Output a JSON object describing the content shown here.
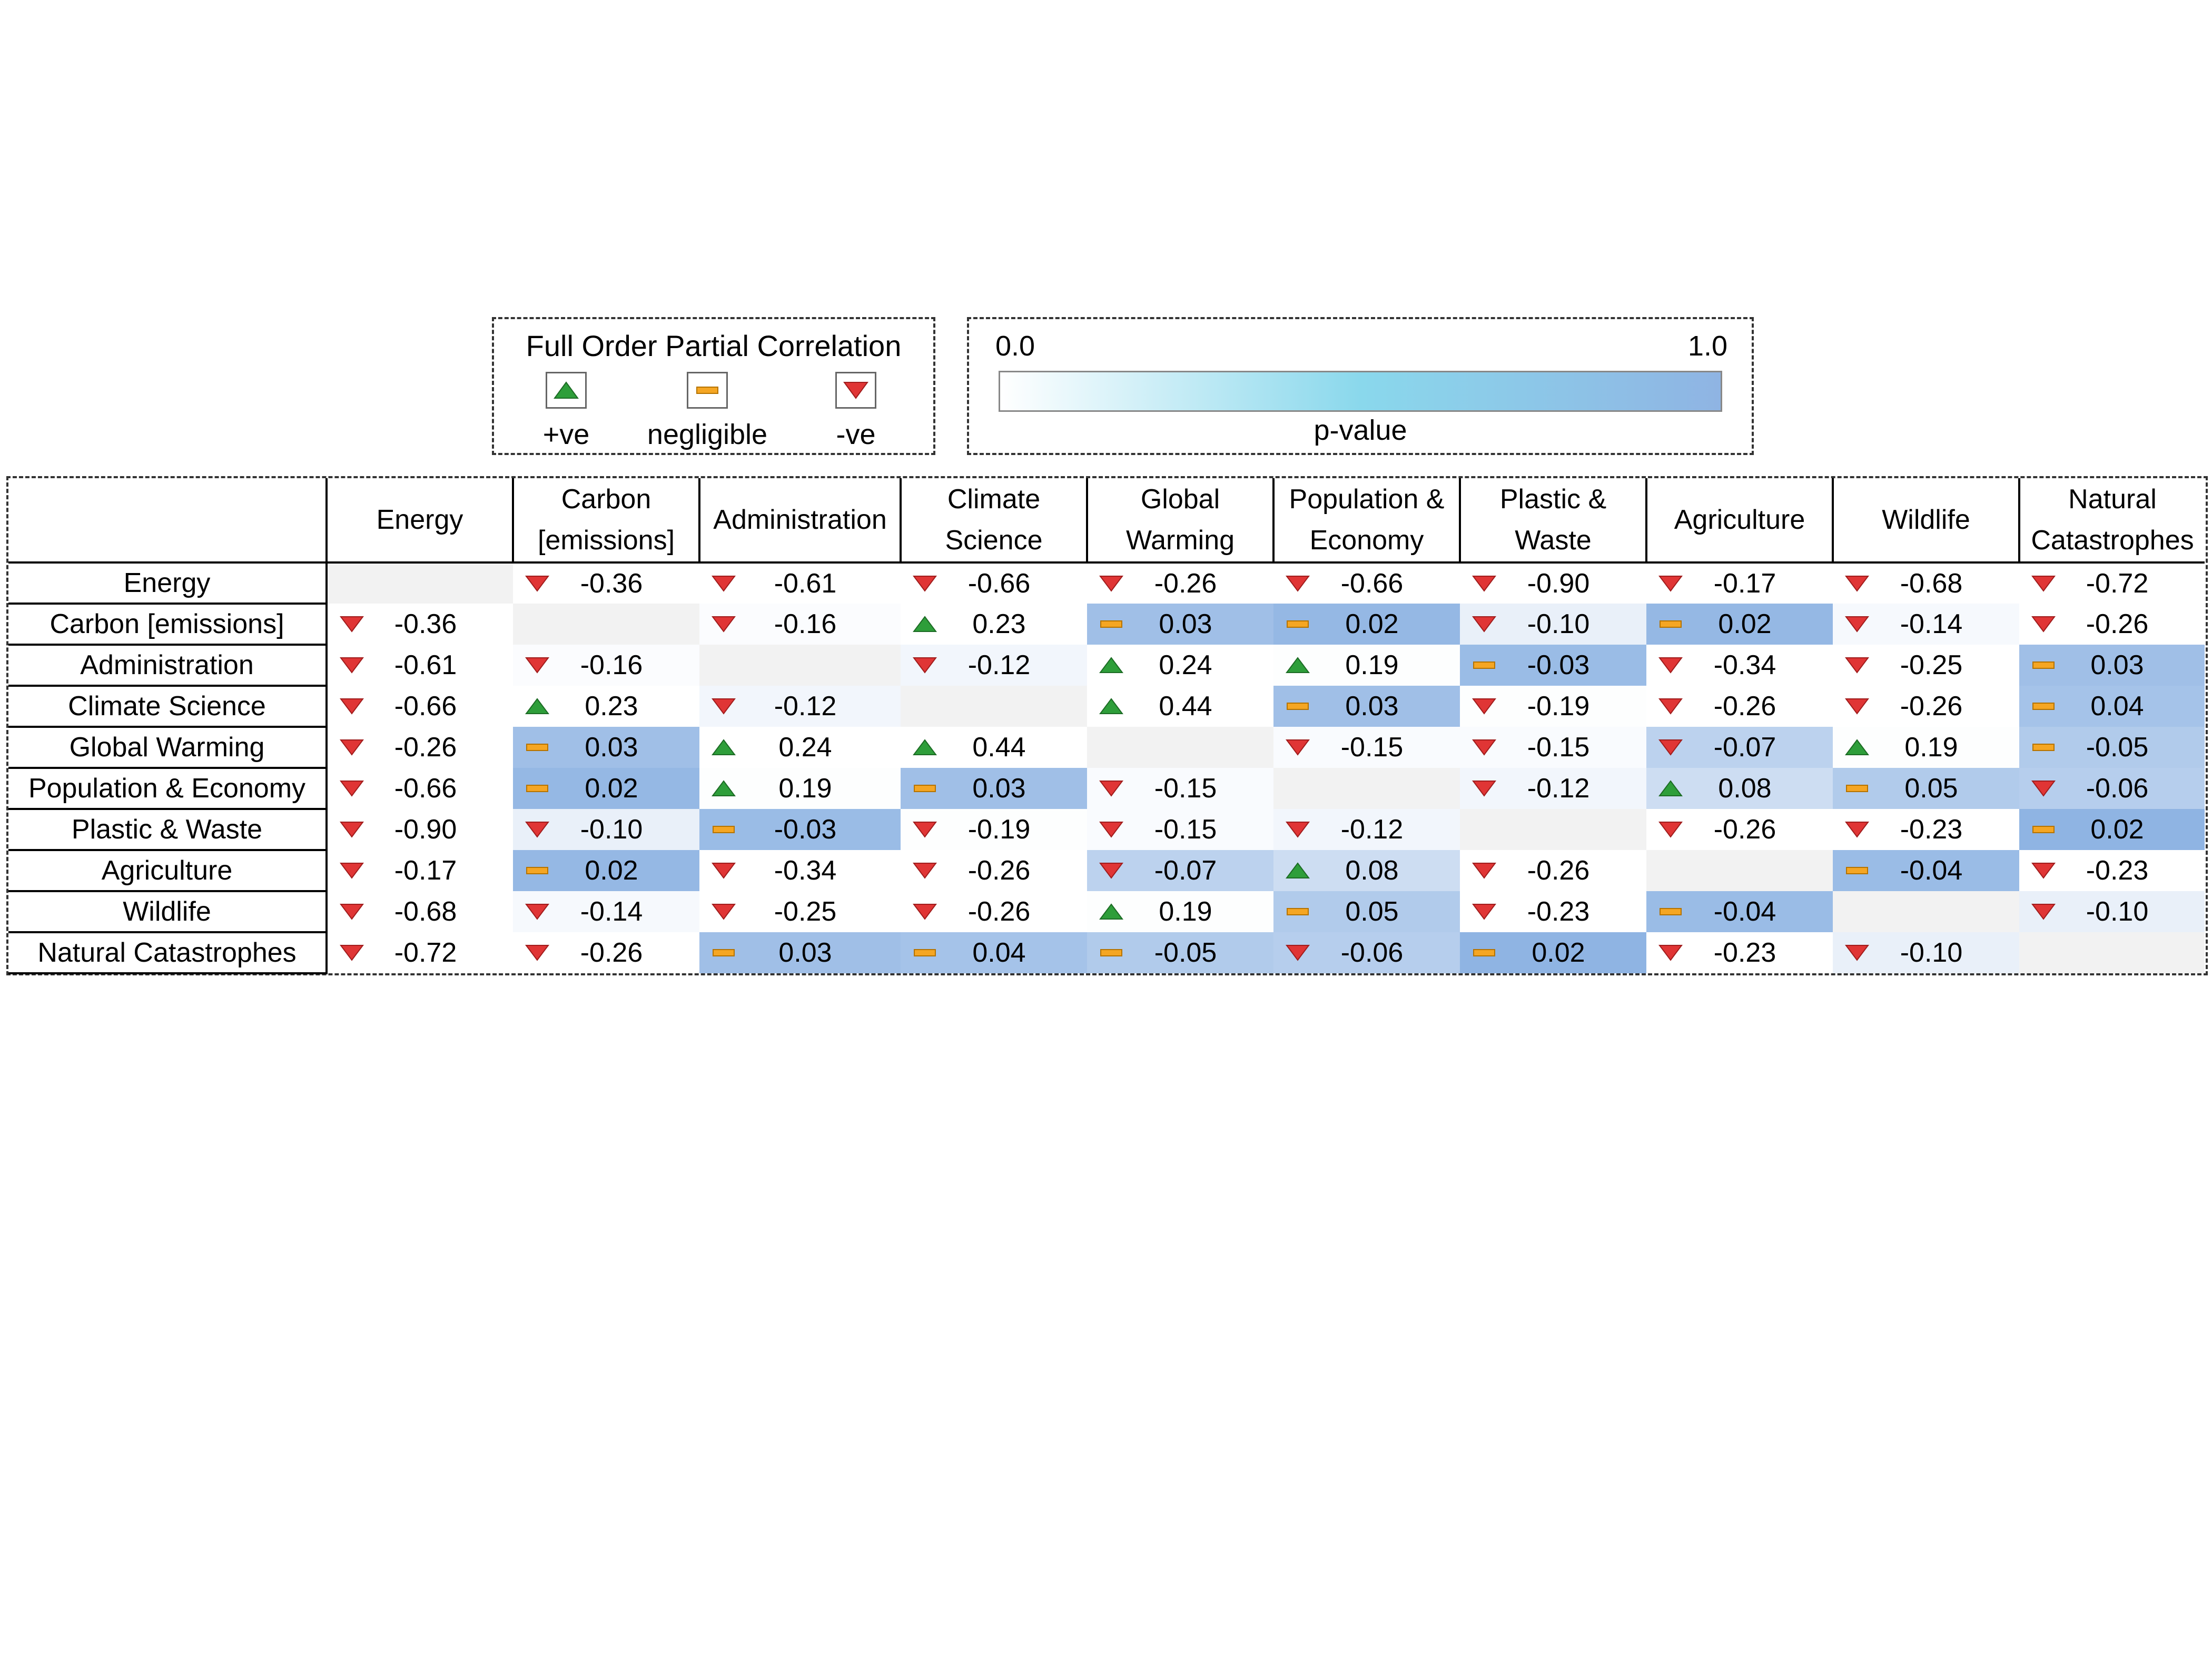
{
  "legend": {
    "correlation_title": "Full Order Partial Correlation",
    "positive_label": "+ve",
    "negligible_label": "negligible",
    "negative_label": "-ve",
    "pvalue_min": "0.0",
    "pvalue_max": "1.0",
    "pvalue_label": "p-value"
  },
  "colors": {
    "positive": "#2e9e3a",
    "negligible": "#f5a623",
    "negative": "#e03535",
    "diagonal": "#f2f2f2",
    "pvalue_low": "#ffffff",
    "pvalue_mid": "#8ad8ec",
    "pvalue_high": "#8fb4e3"
  },
  "chart_data": {
    "type": "heatmap",
    "columns": [
      "Energy",
      "Carbon [emissions]",
      "Administration",
      "Climate Science",
      "Global Warming",
      "Population & Economy",
      "Plastic & Waste",
      "Agriculture",
      "Wildlife",
      "Natural Catastrophes"
    ],
    "rows": [
      "Energy",
      "Carbon [emissions]",
      "Administration",
      "Climate Science",
      "Global Warming",
      "Population & Economy",
      "Plastic & Waste",
      "Agriculture",
      "Wildlife",
      "Natural Catastrophes"
    ],
    "values": [
      [
        null,
        "-0.36",
        "-0.61",
        "-0.66",
        "-0.26",
        "-0.66",
        "-0.90",
        "-0.17",
        "-0.68",
        "-0.72"
      ],
      [
        "-0.36",
        null,
        "-0.16",
        "0.23",
        "0.03",
        "0.02",
        "-0.10",
        "0.02",
        "-0.14",
        "-0.26"
      ],
      [
        "-0.61",
        "-0.16",
        null,
        "-0.12",
        "0.24",
        "0.19",
        "-0.03",
        "-0.34",
        "-0.25",
        "0.03"
      ],
      [
        "-0.66",
        "0.23",
        "-0.12",
        null,
        "0.44",
        "0.03",
        "-0.19",
        "-0.26",
        "-0.26",
        "0.04"
      ],
      [
        "-0.26",
        "0.03",
        "0.24",
        "0.44",
        null,
        "-0.15",
        "-0.15",
        "-0.07",
        "0.19",
        "-0.05"
      ],
      [
        "-0.66",
        "0.02",
        "0.19",
        "0.03",
        "-0.15",
        null,
        "-0.12",
        "0.08",
        "0.05",
        "-0.06"
      ],
      [
        "-0.90",
        "-0.10",
        "-0.03",
        "-0.19",
        "-0.15",
        "-0.12",
        null,
        "-0.26",
        "-0.23",
        "0.02"
      ],
      [
        "-0.17",
        "0.02",
        "-0.34",
        "-0.26",
        "-0.07",
        "0.08",
        "-0.26",
        null,
        "-0.04",
        "-0.23"
      ],
      [
        "-0.68",
        "-0.14",
        "-0.25",
        "-0.26",
        "0.19",
        "0.05",
        "-0.23",
        "-0.04",
        null,
        "-0.10"
      ],
      [
        "-0.72",
        "-0.26",
        "0.03",
        "0.04",
        "-0.05",
        "-0.06",
        "0.02",
        "-0.23",
        "-0.10",
        null
      ]
    ],
    "direction": [
      [
        null,
        "neg",
        "neg",
        "neg",
        "neg",
        "neg",
        "neg",
        "neg",
        "neg",
        "neg"
      ],
      [
        "neg",
        null,
        "neg",
        "pos",
        "negl",
        "negl",
        "neg",
        "negl",
        "neg",
        "neg"
      ],
      [
        "neg",
        "neg",
        null,
        "neg",
        "pos",
        "pos",
        "negl",
        "neg",
        "neg",
        "negl"
      ],
      [
        "neg",
        "pos",
        "neg",
        null,
        "pos",
        "negl",
        "neg",
        "neg",
        "neg",
        "negl"
      ],
      [
        "neg",
        "negl",
        "pos",
        "pos",
        null,
        "neg",
        "neg",
        "neg",
        "pos",
        "negl"
      ],
      [
        "neg",
        "negl",
        "pos",
        "negl",
        "neg",
        null,
        "neg",
        "pos",
        "negl",
        "neg"
      ],
      [
        "neg",
        "neg",
        "negl",
        "neg",
        "neg",
        "neg",
        null,
        "neg",
        "neg",
        "negl"
      ],
      [
        "neg",
        "negl",
        "neg",
        "neg",
        "neg",
        "pos",
        "neg",
        null,
        "negl",
        "neg"
      ],
      [
        "neg",
        "neg",
        "neg",
        "neg",
        "pos",
        "negl",
        "neg",
        "negl",
        null,
        "neg"
      ],
      [
        "neg",
        "neg",
        "negl",
        "negl",
        "negl",
        "neg",
        "negl",
        "neg",
        "neg",
        null
      ]
    ],
    "pvalue": [
      [
        null,
        0.0,
        0.0,
        0.0,
        0.0,
        0.0,
        0.0,
        0.0,
        0.0,
        0.0
      ],
      [
        0.0,
        null,
        0.04,
        0.0,
        0.85,
        0.95,
        0.2,
        0.95,
        0.08,
        0.0
      ],
      [
        0.0,
        0.04,
        null,
        0.12,
        0.0,
        0.02,
        0.9,
        0.0,
        0.0,
        0.85
      ],
      [
        0.0,
        0.0,
        0.12,
        null,
        0.0,
        0.85,
        0.02,
        0.0,
        0.0,
        0.8
      ],
      [
        0.0,
        0.85,
        0.0,
        0.0,
        null,
        0.05,
        0.05,
        0.6,
        0.02,
        0.7
      ],
      [
        0.0,
        0.95,
        0.02,
        0.85,
        0.05,
        null,
        0.12,
        0.45,
        0.7,
        0.65
      ],
      [
        0.0,
        0.2,
        0.9,
        0.02,
        0.05,
        0.12,
        null,
        0.0,
        0.0,
        1.0
      ],
      [
        0.0,
        0.95,
        0.0,
        0.0,
        0.6,
        0.45,
        0.0,
        null,
        0.9,
        0.0
      ],
      [
        0.0,
        0.08,
        0.0,
        0.0,
        0.02,
        0.7,
        0.0,
        0.9,
        null,
        0.2
      ],
      [
        0.0,
        0.0,
        0.85,
        0.8,
        0.7,
        0.65,
        1.0,
        0.0,
        0.2,
        null
      ]
    ]
  }
}
